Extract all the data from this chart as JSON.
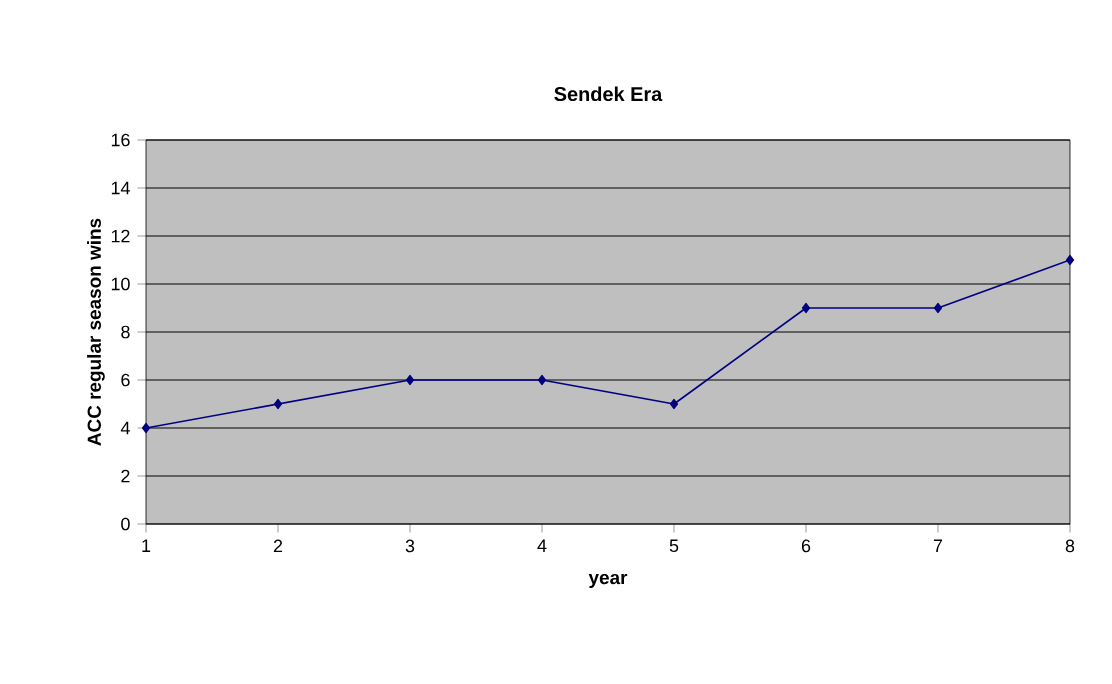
{
  "chart_data": {
    "type": "line",
    "title": "Sendek Era",
    "xlabel": "year",
    "ylabel": "ACC regular season wins",
    "x": [
      1,
      2,
      3,
      4,
      5,
      6,
      7,
      8
    ],
    "series": [
      {
        "color": "#000080",
        "values": [
          4,
          5,
          6,
          6,
          5,
          9,
          9,
          11
        ]
      }
    ],
    "xlim": [
      1,
      8
    ],
    "xticks": [
      1,
      2,
      3,
      4,
      5,
      6,
      7,
      8
    ],
    "ylim": [
      0,
      16
    ],
    "yticks": [
      0,
      2,
      4,
      6,
      8,
      10,
      12,
      14,
      16
    ],
    "grid": "y",
    "marker": "diamond",
    "line_style": "solid"
  }
}
